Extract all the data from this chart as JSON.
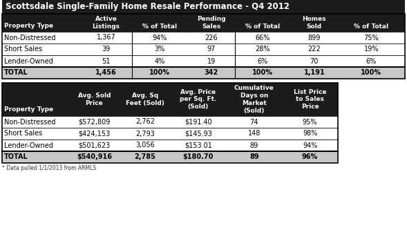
{
  "title": "Scottsdale Single-Family Home Resale Performance - Q4 2012",
  "table1_data": [
    [
      "Non-Distressed",
      "1,367",
      "94%",
      "226",
      "66%",
      "899",
      "75%"
    ],
    [
      "Short Sales",
      "39",
      "3%",
      "97",
      "28%",
      "222",
      "19%"
    ],
    [
      "Lender-Owned",
      "51",
      "4%",
      "19",
      "6%",
      "70",
      "6%"
    ],
    [
      "TOTAL",
      "1,456",
      "100%",
      "342",
      "100%",
      "1,191",
      "100%"
    ]
  ],
  "table1_header_line1": [
    "",
    "Active",
    "",
    "Pending",
    "",
    "Homes",
    ""
  ],
  "table1_header_line2": [
    "Property Type",
    "Listings",
    "% of Total",
    "Sales",
    "% of Total",
    "Sold",
    "% of Total"
  ],
  "table2_data": [
    [
      "Non-Distressed",
      "$572,809",
      "2,762",
      "$191.40",
      "74",
      "95%"
    ],
    [
      "Short Sales",
      "$424,153",
      "2,793",
      "$145.93",
      "148",
      "98%"
    ],
    [
      "Lender-Owned",
      "$501,623",
      "3,056",
      "$153.01",
      "89",
      "94%"
    ],
    [
      "TOTAL",
      "$540,916",
      "2,785",
      "$180.70",
      "89",
      "96%"
    ]
  ],
  "table2_header": [
    [
      "Property Type",
      "Avg. Sold\nPrice",
      "Avg. Sq\nFeet (Sold)",
      "Avg. Price\nper Sq. Ft.\n(Sold)",
      "Cumulative\nDays on\nMarket\n(Sold)",
      "List Price\nto Sales\nPrice"
    ]
  ],
  "footnote": "* Data pulled 1/1/2013 from ARMLS",
  "header_bg": "#1c1c1c",
  "header_color": "#ffffff",
  "total_row_bg": "#c8c8c8",
  "data_row_bg": "#ffffff",
  "border_color": "#000000",
  "title_fontsize": 8.5,
  "header_fontsize": 6.5,
  "data_fontsize": 7.0,
  "fig_width": 5.89,
  "fig_height": 3.62,
  "dpi": 100
}
